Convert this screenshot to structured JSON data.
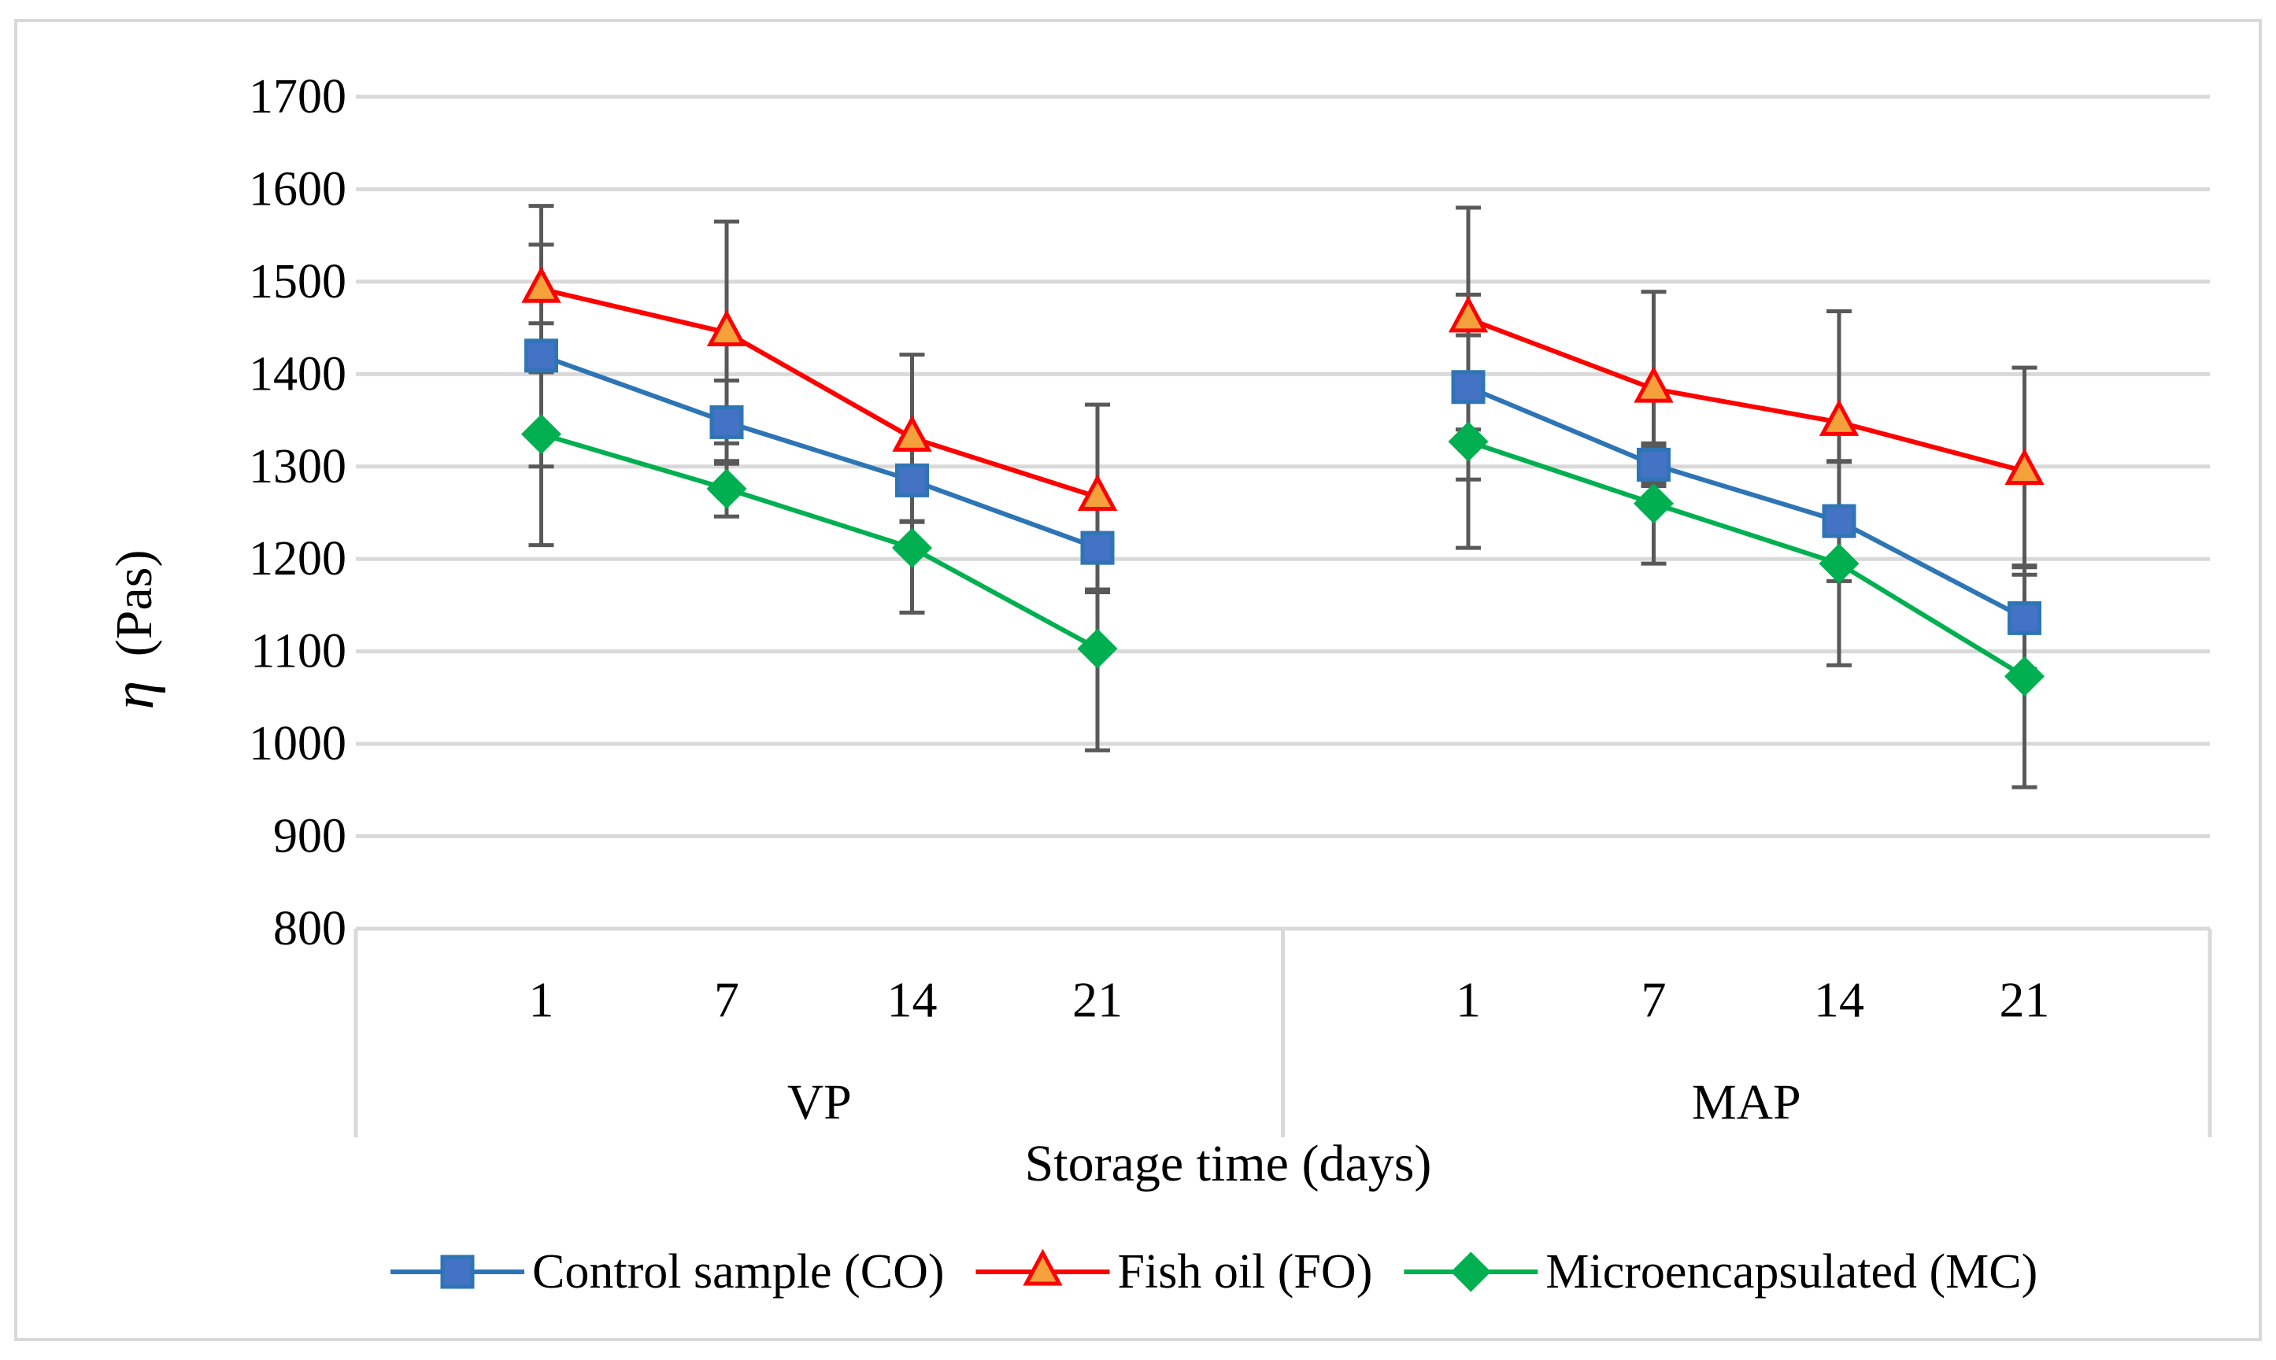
{
  "chart_data": {
    "type": "line",
    "title": "",
    "xlabel": "Storage time (days)",
    "ylabel_symbol": "η",
    "ylabel_unit": "(Pas)",
    "ylim": [
      800,
      1700
    ],
    "ytick_step": 100,
    "yticks": [
      "800",
      "900",
      "1000",
      "1100",
      "1200",
      "1300",
      "1400",
      "1500",
      "1600",
      "1700"
    ],
    "grid": true,
    "groups": [
      {
        "label": "VP",
        "categories": [
          "1",
          "7",
          "14",
          "21"
        ]
      },
      {
        "label": "MAP",
        "categories": [
          "1",
          "7",
          "14",
          "21"
        ]
      }
    ],
    "series": [
      {
        "name": "Control sample (CO)",
        "color": "#2E75B6",
        "marker_fill": "#4472C4",
        "marker": "square",
        "groups": [
          {
            "values": [
              1420,
              1348,
              1285,
              1212
            ],
            "errors": [
              120,
              45,
              45,
              48
            ]
          },
          {
            "values": [
              1386,
              1302,
              1241,
              1136
            ],
            "errors": [
              100,
              20,
              65,
              55
            ]
          }
        ]
      },
      {
        "name": "Fish oil (FO)",
        "color": "#FF0000",
        "marker_fill": "#F4A13C",
        "marker": "triangle",
        "groups": [
          {
            "values": [
              1492,
              1445,
              1331,
              1267
            ],
            "errors": [
              90,
              120,
              90,
              100
            ]
          },
          {
            "values": [
              1460,
              1384,
              1348,
              1295
            ],
            "errors": [
              120,
              105,
              120,
              112
            ]
          }
        ]
      },
      {
        "name": "Microencapsulated (MC)",
        "color": "#00B050",
        "marker_fill": "#00B050",
        "marker": "diamond",
        "groups": [
          {
            "values": [
              1335,
              1276,
              1212,
              1103
            ],
            "errors": [
              120,
              30,
              70,
              110
            ]
          },
          {
            "values": [
              1327,
              1260,
              1195,
              1073
            ],
            "errors": [
              115,
              65,
              110,
              120
            ]
          }
        ]
      }
    ],
    "legend": "bottom",
    "error_bar_color": "#595959"
  }
}
